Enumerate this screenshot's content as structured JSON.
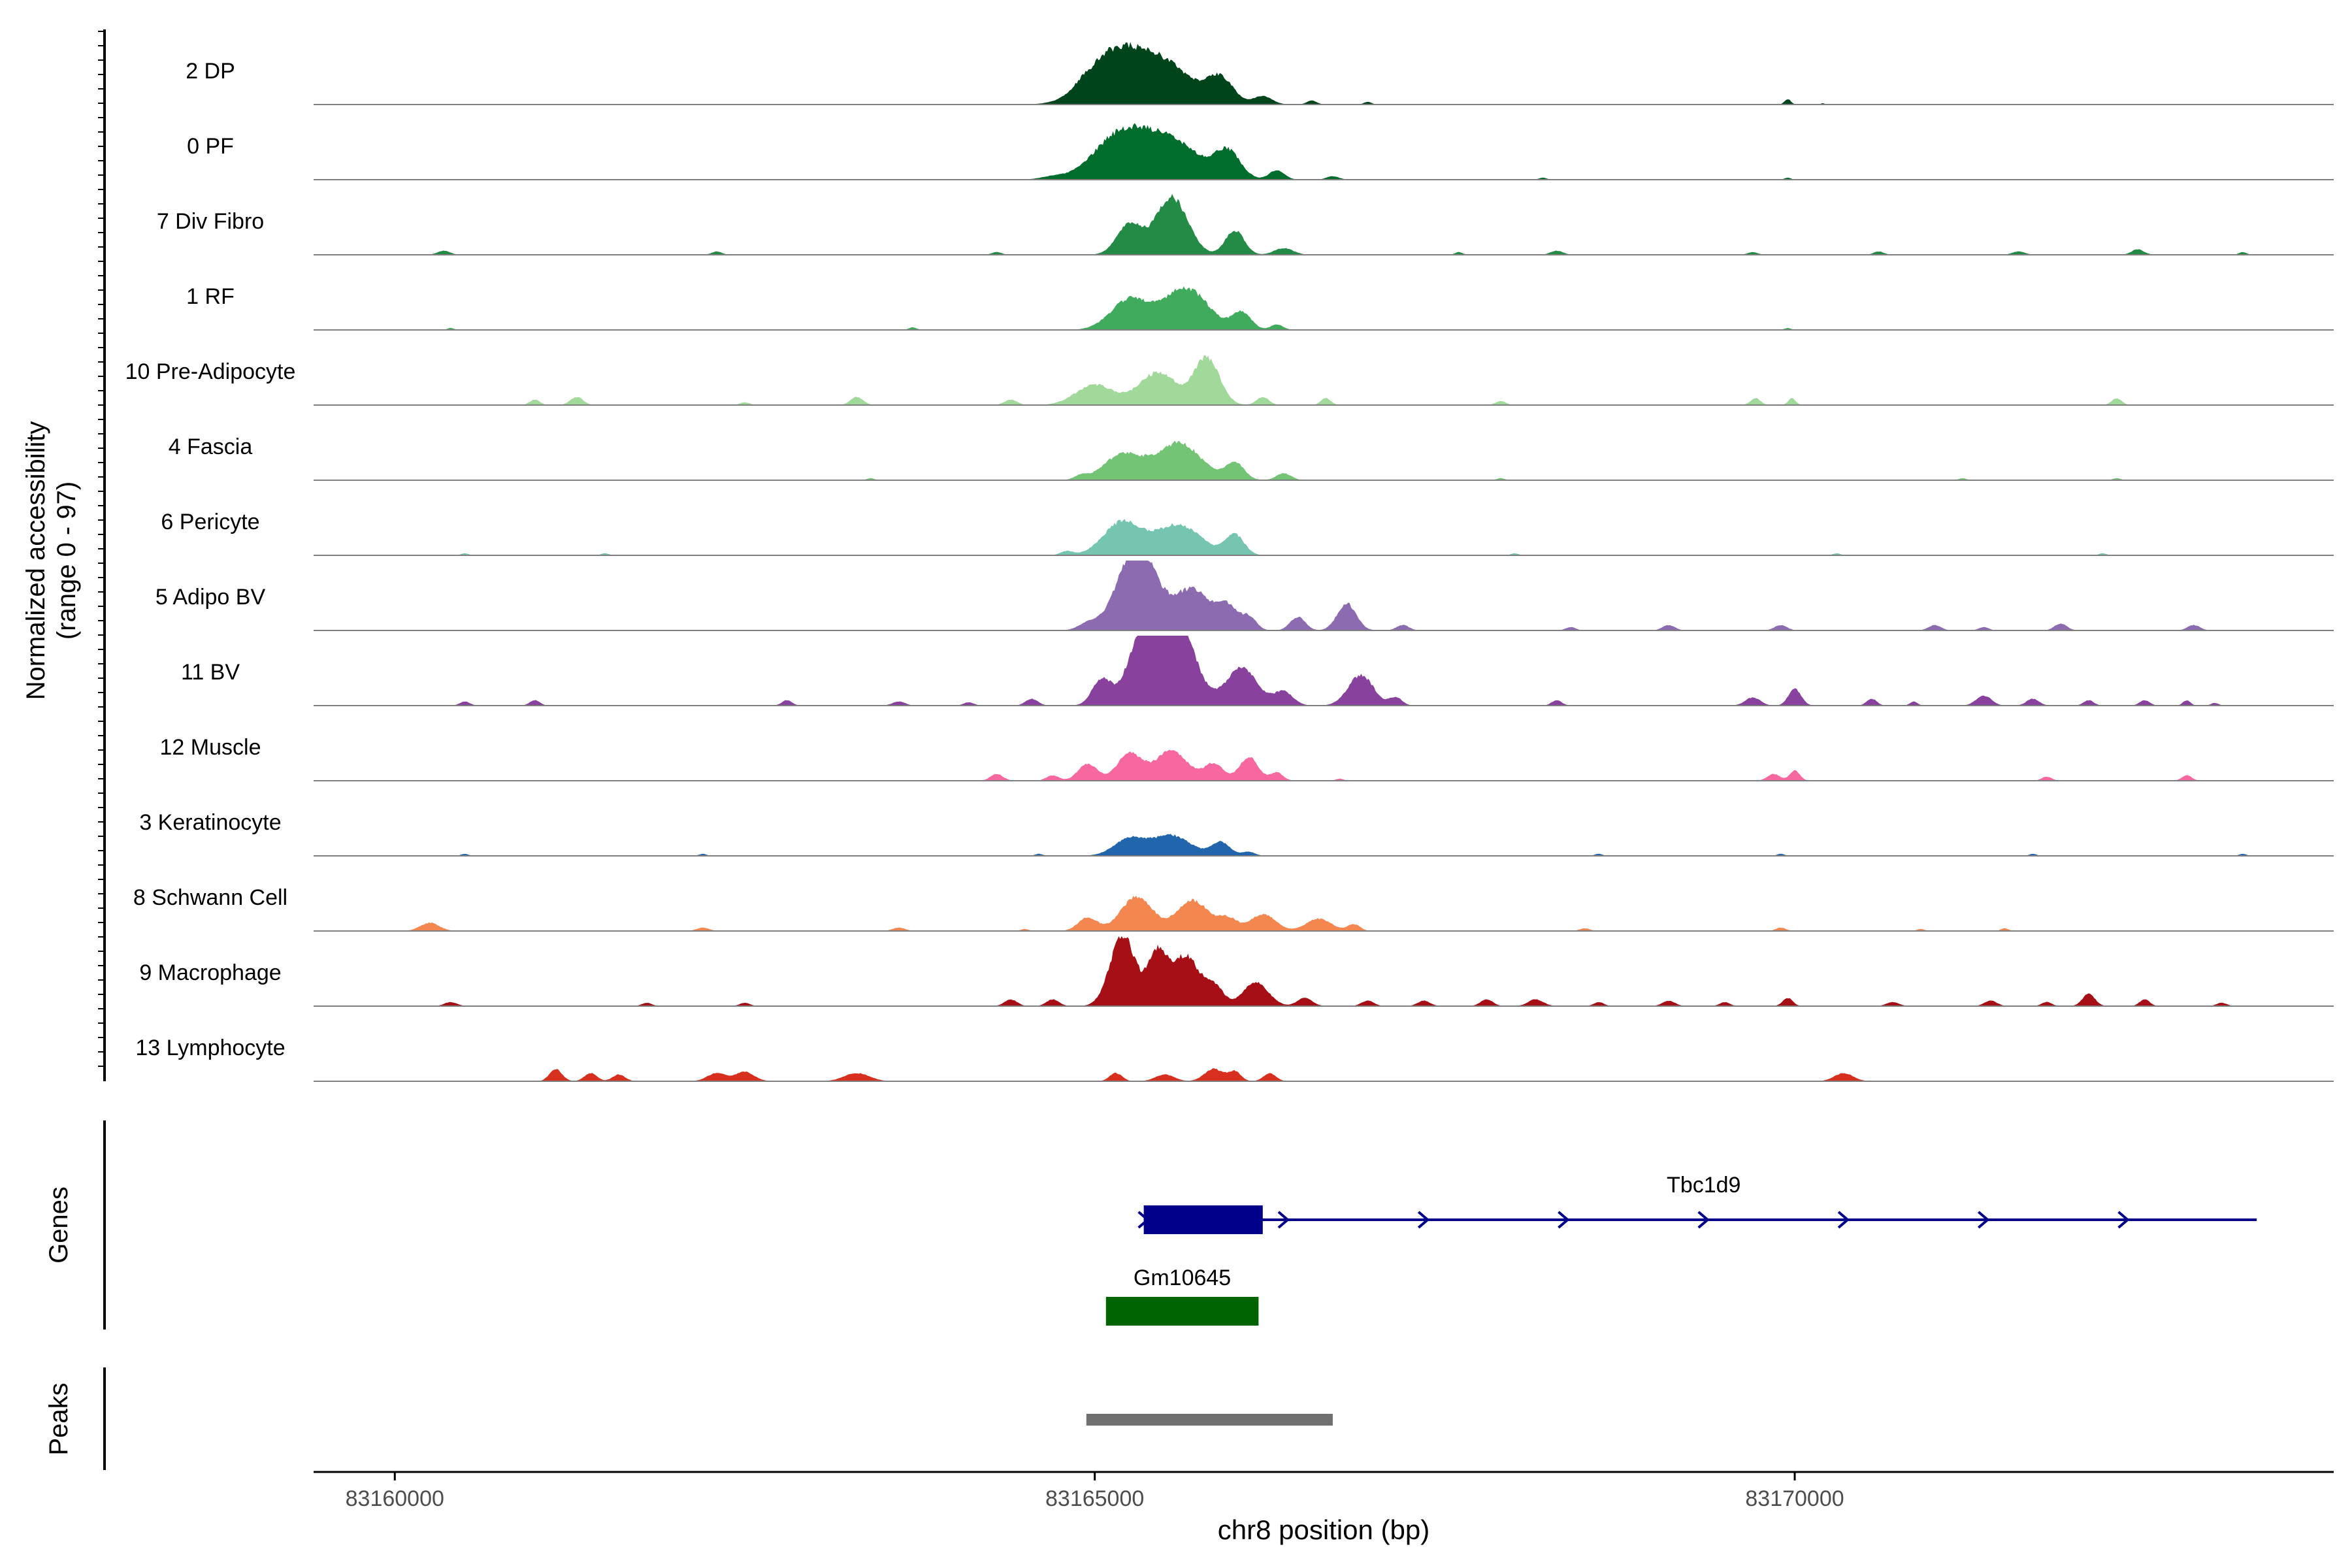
{
  "chart_data": {
    "type": "area",
    "ylabel_line1": "Normalized accessibility",
    "ylabel_line2": "(range 0 - 97)",
    "xlabel": "chr8 position (bp)",
    "xlim": [
      83159420,
      83173850
    ],
    "ylim": [
      0,
      97
    ],
    "x_ticks": [
      83160000,
      83165000,
      83170000
    ],
    "tracks": [
      {
        "name": "2 DP",
        "color": "#00441b",
        "peaks": [
          [
            83165100,
            60,
            400
          ],
          [
            83165450,
            66,
            500
          ],
          [
            83165900,
            35,
            200
          ],
          [
            83166200,
            12,
            150
          ],
          [
            83164900,
            4,
            100
          ],
          [
            83166550,
            6,
            80
          ],
          [
            83166950,
            4,
            60
          ],
          [
            83169950,
            8,
            50
          ],
          [
            83170200,
            2,
            30
          ]
        ]
      },
      {
        "name": "0 PF",
        "color": "#006d2c",
        "peaks": [
          [
            83165150,
            52,
            400
          ],
          [
            83165500,
            62,
            500
          ],
          [
            83165950,
            38,
            200
          ],
          [
            83166300,
            14,
            120
          ],
          [
            83164700,
            4,
            200
          ],
          [
            83166700,
            5,
            100
          ],
          [
            83168200,
            3,
            60
          ],
          [
            83169950,
            3,
            50
          ]
        ]
      },
      {
        "name": "7 Div Fibro",
        "color": "#238b45",
        "peaks": [
          [
            83165250,
            45,
            200
          ],
          [
            83165550,
            85,
            250
          ],
          [
            83166000,
            36,
            150
          ],
          [
            83166350,
            10,
            150
          ],
          [
            83160350,
            6,
            100
          ],
          [
            83162300,
            5,
            80
          ],
          [
            83164300,
            4,
            80
          ],
          [
            83167600,
            4,
            60
          ],
          [
            83168300,
            6,
            100
          ],
          [
            83169700,
            4,
            80
          ],
          [
            83170600,
            5,
            80
          ],
          [
            83171600,
            5,
            100
          ],
          [
            83172450,
            8,
            100
          ],
          [
            83173200,
            4,
            60
          ]
        ]
      },
      {
        "name": "1 RF",
        "color": "#41ab5d",
        "peaks": [
          [
            83165250,
            45,
            300
          ],
          [
            83165650,
            62,
            350
          ],
          [
            83166050,
            25,
            150
          ],
          [
            83166300,
            8,
            100
          ],
          [
            83160400,
            3,
            50
          ],
          [
            83163700,
            4,
            60
          ],
          [
            83169950,
            3,
            50
          ]
        ]
      },
      {
        "name": "10 Pre-Adipocyte",
        "color": "#a1d99b",
        "peaks": [
          [
            83165000,
            30,
            300
          ],
          [
            83165450,
            48,
            300
          ],
          [
            83165800,
            70,
            200
          ],
          [
            83166200,
            12,
            100
          ],
          [
            83166650,
            10,
            80
          ],
          [
            83161000,
            8,
            80
          ],
          [
            83161300,
            12,
            100
          ],
          [
            83163300,
            12,
            100
          ],
          [
            83164400,
            8,
            100
          ],
          [
            83167900,
            6,
            80
          ],
          [
            83169720,
            10,
            80
          ],
          [
            83169980,
            10,
            60
          ],
          [
            83172300,
            10,
            80
          ],
          [
            83162500,
            4,
            80
          ]
        ]
      },
      {
        "name": "4 Fascia",
        "color": "#74c476",
        "peaks": [
          [
            83165200,
            38,
            300
          ],
          [
            83165600,
            55,
            350
          ],
          [
            83166000,
            25,
            150
          ],
          [
            83166350,
            10,
            120
          ],
          [
            83164900,
            6,
            100
          ],
          [
            83163400,
            3,
            60
          ],
          [
            83167900,
            3,
            60
          ],
          [
            83171200,
            3,
            60
          ],
          [
            83172300,
            3,
            60
          ]
        ]
      },
      {
        "name": "6 Pericyte",
        "color": "#76c5b1",
        "peaks": [
          [
            83165200,
            50,
            300
          ],
          [
            83165600,
            45,
            350
          ],
          [
            83166000,
            30,
            150
          ],
          [
            83164800,
            6,
            100
          ],
          [
            83160500,
            3,
            60
          ],
          [
            83161500,
            3,
            60
          ],
          [
            83168000,
            3,
            60
          ],
          [
            83170300,
            3,
            60
          ],
          [
            83172200,
            3,
            60
          ]
        ]
      },
      {
        "name": "5 Adipo BV",
        "color": "#8c6bb1",
        "peaks": [
          [
            83165300,
            125,
            300
          ],
          [
            83165700,
            60,
            300
          ],
          [
            83165950,
            30,
            150
          ],
          [
            83166100,
            20,
            120
          ],
          [
            83166450,
            20,
            120
          ],
          [
            83166800,
            40,
            150
          ],
          [
            83167200,
            8,
            100
          ],
          [
            83164950,
            10,
            150
          ],
          [
            83169100,
            8,
            100
          ],
          [
            83169900,
            8,
            100
          ],
          [
            83171000,
            8,
            100
          ],
          [
            83171350,
            5,
            80
          ],
          [
            83171900,
            10,
            100
          ],
          [
            83172850,
            8,
            100
          ],
          [
            83168400,
            5,
            80
          ]
        ]
      },
      {
        "name": "11 BV",
        "color": "#88419d",
        "peaks": [
          [
            83165050,
            40,
            150
          ],
          [
            83165300,
            70,
            200
          ],
          [
            83165550,
            160,
            300
          ],
          [
            83166050,
            55,
            250
          ],
          [
            83166350,
            20,
            150
          ],
          [
            83166900,
            45,
            200
          ],
          [
            83167150,
            12,
            100
          ],
          [
            83164550,
            10,
            100
          ],
          [
            83160500,
            6,
            80
          ],
          [
            83161000,
            8,
            80
          ],
          [
            83162800,
            8,
            80
          ],
          [
            83163600,
            6,
            100
          ],
          [
            83164100,
            5,
            80
          ],
          [
            83168300,
            8,
            80
          ],
          [
            83169700,
            12,
            120
          ],
          [
            83170000,
            25,
            100
          ],
          [
            83170550,
            10,
            80
          ],
          [
            83170850,
            6,
            60
          ],
          [
            83171350,
            15,
            120
          ],
          [
            83171700,
            10,
            100
          ],
          [
            83172100,
            8,
            80
          ],
          [
            83172500,
            8,
            80
          ],
          [
            83172800,
            8,
            60
          ],
          [
            83173000,
            4,
            60
          ]
        ]
      },
      {
        "name": "12 Muscle",
        "color": "#f768a1",
        "peaks": [
          [
            83164950,
            25,
            150
          ],
          [
            83165250,
            40,
            200
          ],
          [
            83165550,
            45,
            250
          ],
          [
            83165850,
            25,
            150
          ],
          [
            83166100,
            35,
            150
          ],
          [
            83166300,
            12,
            100
          ],
          [
            83164300,
            10,
            100
          ],
          [
            83164700,
            8,
            100
          ],
          [
            83169850,
            10,
            100
          ],
          [
            83170000,
            15,
            80
          ],
          [
            83171800,
            6,
            80
          ],
          [
            83172800,
            8,
            80
          ],
          [
            83166750,
            3,
            60
          ]
        ]
      },
      {
        "name": "3 Keratinocyte",
        "color": "#2166ac",
        "peaks": [
          [
            83165250,
            25,
            250
          ],
          [
            83165550,
            30,
            300
          ],
          [
            83165900,
            20,
            150
          ],
          [
            83166100,
            6,
            100
          ],
          [
            83160500,
            3,
            60
          ],
          [
            83162200,
            3,
            60
          ],
          [
            83164600,
            3,
            60
          ],
          [
            83168600,
            3,
            60
          ],
          [
            83169900,
            3,
            60
          ],
          [
            83171700,
            3,
            60
          ],
          [
            83173200,
            3,
            60
          ]
        ]
      },
      {
        "name": "8 Schwann Cell",
        "color": "#f4874f",
        "peaks": [
          [
            83164950,
            20,
            150
          ],
          [
            83165300,
            50,
            250
          ],
          [
            83165700,
            45,
            250
          ],
          [
            83165950,
            18,
            150
          ],
          [
            83166200,
            25,
            200
          ],
          [
            83166600,
            18,
            200
          ],
          [
            83166850,
            10,
            100
          ],
          [
            83160250,
            12,
            150
          ],
          [
            83162200,
            5,
            100
          ],
          [
            83163600,
            5,
            100
          ],
          [
            83164500,
            3,
            60
          ],
          [
            83168500,
            4,
            80
          ],
          [
            83169900,
            5,
            80
          ],
          [
            83170900,
            3,
            60
          ],
          [
            83171500,
            4,
            60
          ]
        ]
      },
      {
        "name": "9 Macrophage",
        "color": "#a50f15",
        "peaks": [
          [
            83165200,
            105,
            200
          ],
          [
            83165450,
            80,
            150
          ],
          [
            83165650,
            75,
            200
          ],
          [
            83165850,
            30,
            150
          ],
          [
            83166150,
            35,
            200
          ],
          [
            83166500,
            12,
            120
          ],
          [
            83166950,
            8,
            100
          ],
          [
            83164400,
            10,
            100
          ],
          [
            83164700,
            10,
            100
          ],
          [
            83160400,
            6,
            100
          ],
          [
            83161800,
            5,
            80
          ],
          [
            83162500,
            5,
            80
          ],
          [
            83167350,
            8,
            100
          ],
          [
            83167800,
            10,
            100
          ],
          [
            83168150,
            10,
            120
          ],
          [
            83168600,
            6,
            80
          ],
          [
            83169100,
            8,
            100
          ],
          [
            83169500,
            6,
            80
          ],
          [
            83169950,
            12,
            80
          ],
          [
            83170700,
            6,
            100
          ],
          [
            83171400,
            8,
            100
          ],
          [
            83171800,
            6,
            80
          ],
          [
            83172100,
            18,
            100
          ],
          [
            83172500,
            10,
            80
          ],
          [
            83173050,
            5,
            80
          ]
        ]
      },
      {
        "name": "13 Lymphocyte",
        "color": "#d7301f",
        "peaks": [
          [
            83161150,
            18,
            100
          ],
          [
            83161400,
            12,
            100
          ],
          [
            83161600,
            10,
            100
          ],
          [
            83162300,
            12,
            150
          ],
          [
            83162500,
            14,
            150
          ],
          [
            83163300,
            12,
            200
          ],
          [
            83165150,
            12,
            100
          ],
          [
            83165500,
            10,
            150
          ],
          [
            83165850,
            18,
            150
          ],
          [
            83166000,
            14,
            100
          ],
          [
            83166250,
            12,
            100
          ],
          [
            83170350,
            12,
            150
          ]
        ]
      }
    ],
    "genes_label": "Genes",
    "peaks_label": "Peaks",
    "genes": [
      {
        "name": "Tbc1d9",
        "start": 83165350,
        "end": 83173300,
        "exon": [
          83165350,
          83166200
        ],
        "color": "#00008b",
        "strand": "+"
      },
      {
        "name": "Gm10645",
        "start": 83165080,
        "end": 83166170,
        "color": "#006400"
      }
    ],
    "peak_regions": [
      {
        "start": 83164940,
        "end": 83166700,
        "color": "#707070"
      }
    ]
  }
}
